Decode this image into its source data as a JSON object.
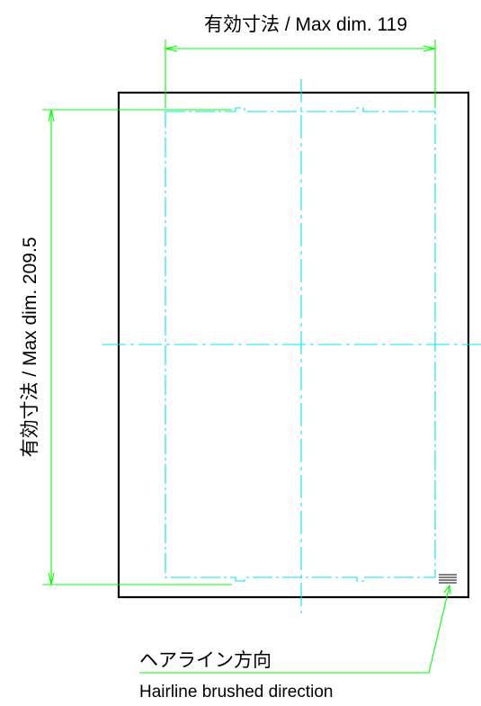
{
  "dimensions": {
    "width": {
      "label": "有効寸法 / Max dim. 119"
    },
    "height": {
      "label": "有効寸法 / Max dim. 209.5"
    }
  },
  "callout": {
    "label_ja": "ヘアライン方向",
    "label_en": "Hairline brushed direction"
  },
  "colors": {
    "outline": "#000000",
    "dimension": "#00ff00",
    "centerline": "#00e5ee"
  }
}
